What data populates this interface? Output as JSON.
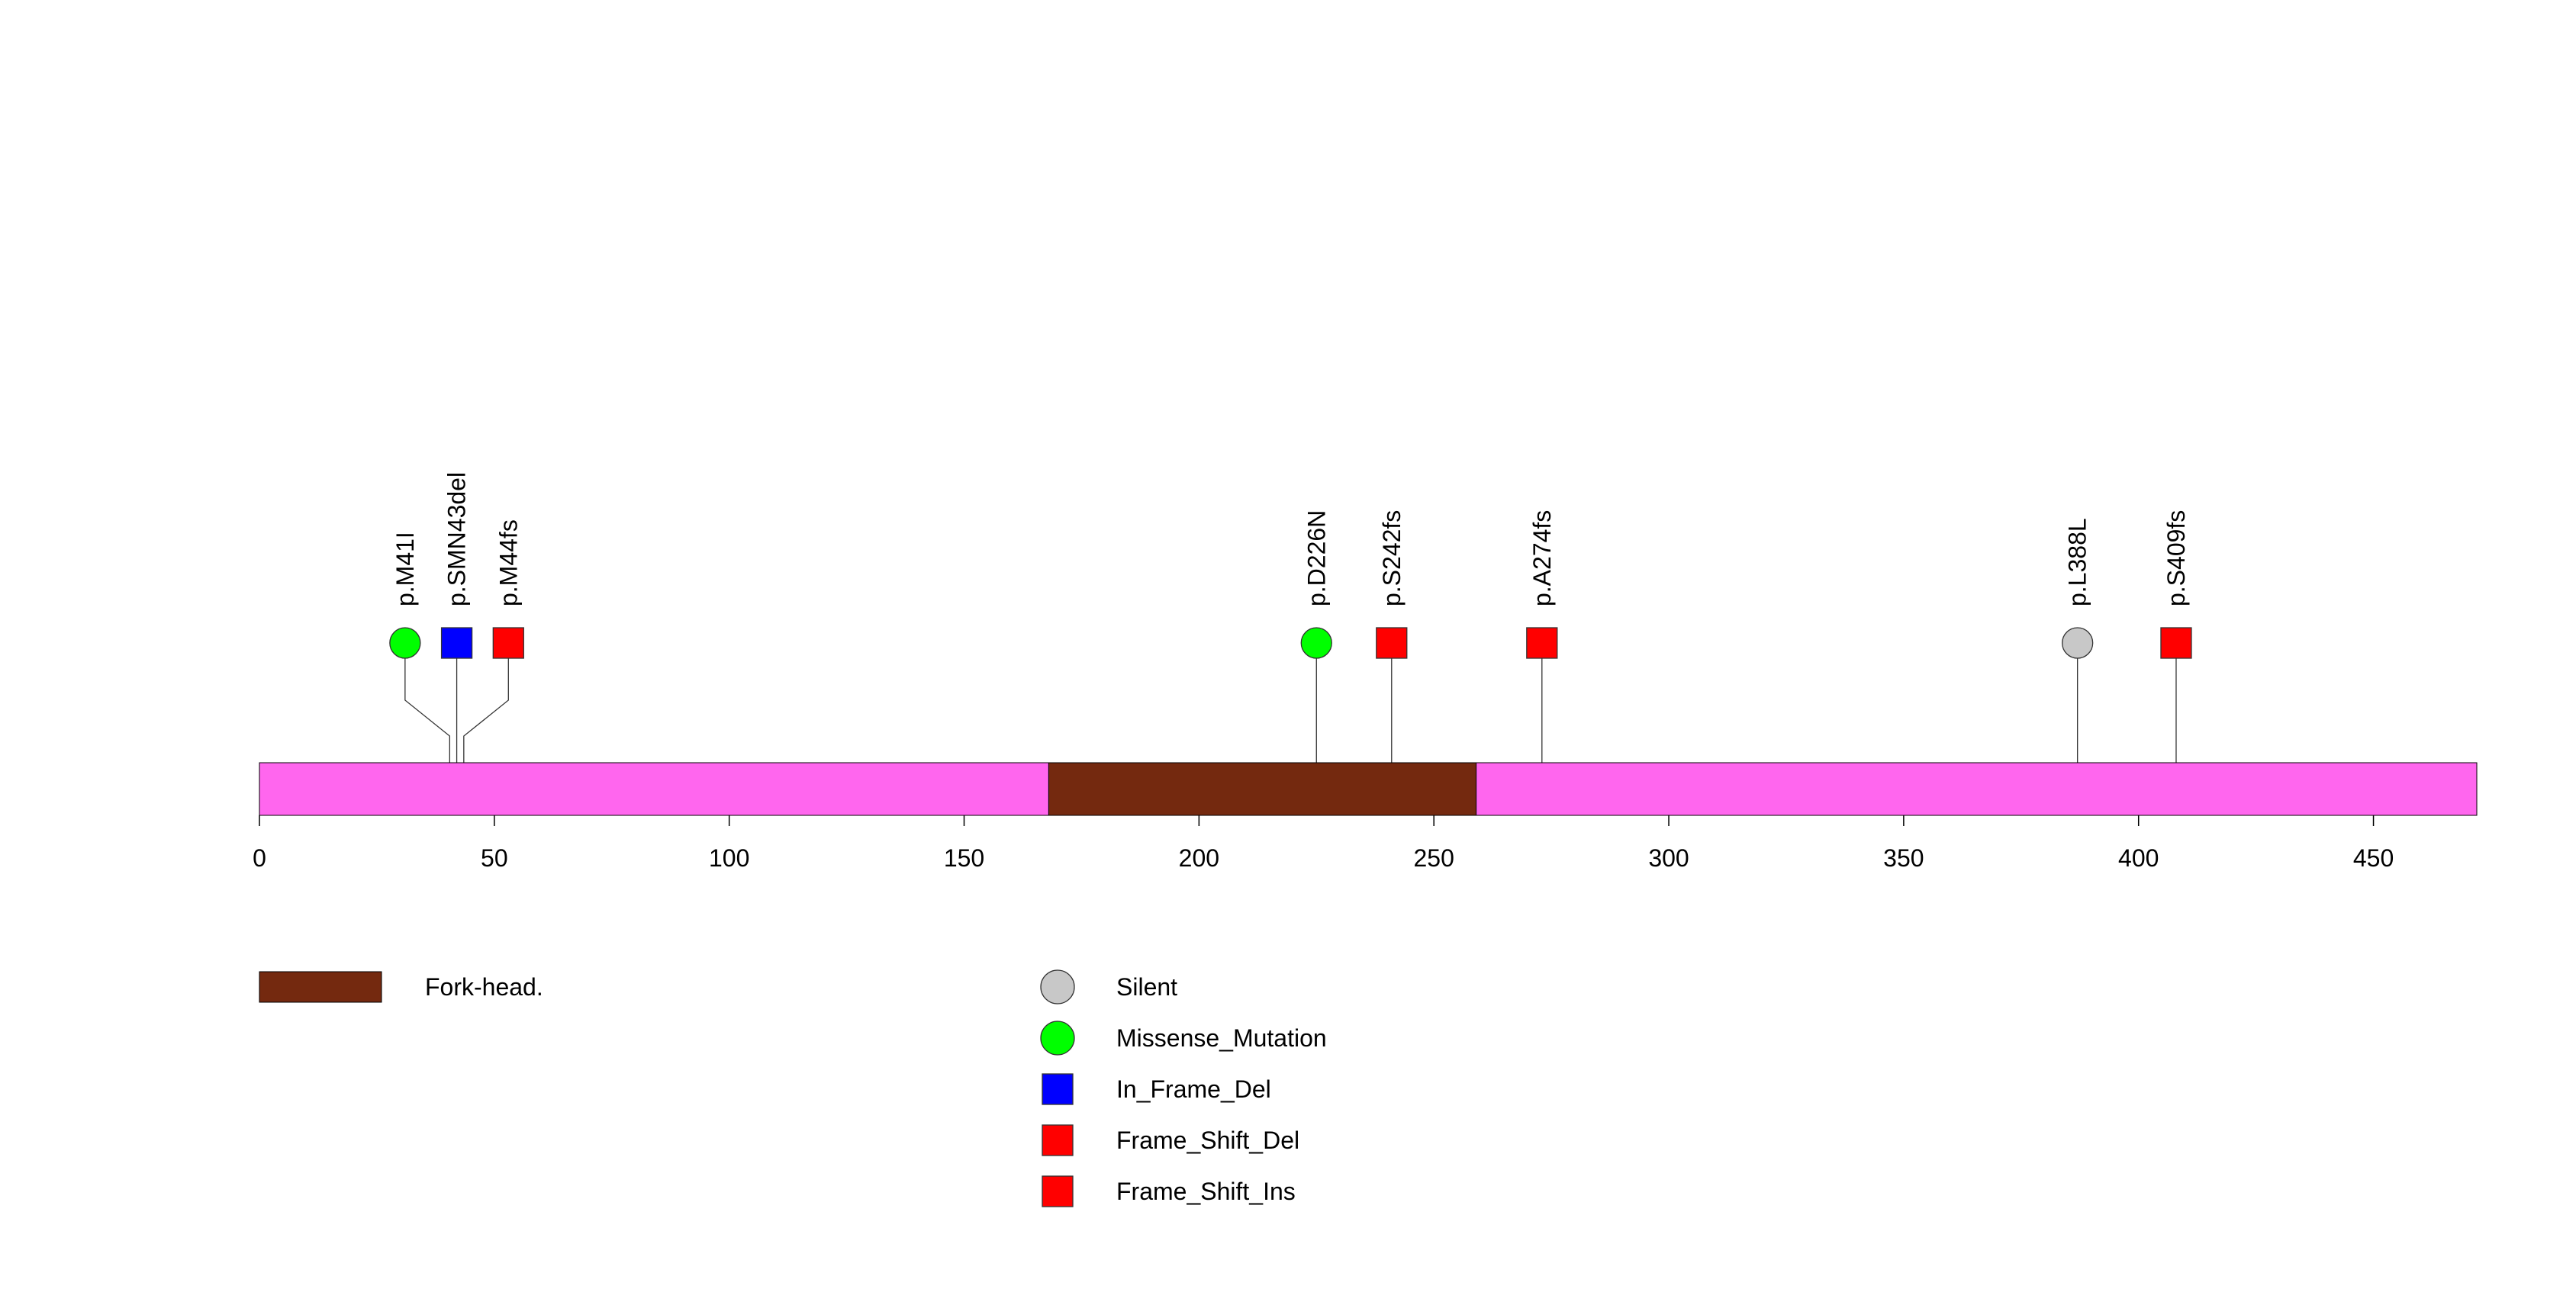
{
  "chart_data": {
    "type": "lollipop",
    "protein_length": 472,
    "axis": {
      "xlim": [
        0,
        472
      ],
      "ticks": [
        0,
        50,
        100,
        150,
        200,
        250,
        300,
        350,
        400,
        450
      ],
      "tick_labels": [
        "0",
        "50",
        "100",
        "150",
        "200",
        "250",
        "300",
        "350",
        "400",
        "450"
      ]
    },
    "protein_color": "#FF66EE",
    "domains": [
      {
        "name": "Fork-head.",
        "start": 168,
        "end": 259,
        "color": "#74290F"
      }
    ],
    "mutations": [
      {
        "label": "p.M41I",
        "position": 40.5,
        "display_position": 31,
        "type": "Missense_Mutation"
      },
      {
        "label": "p.SMN43del",
        "position": 42,
        "display_position": 42,
        "type": "In_Frame_Del"
      },
      {
        "label": "p.M44fs",
        "position": 43.5,
        "display_position": 53,
        "type": "Frame_Shift_Del"
      },
      {
        "label": "p.D226N",
        "position": 225,
        "display_position": 225,
        "type": "Missense_Mutation"
      },
      {
        "label": "p.S242fs",
        "position": 241,
        "display_position": 241,
        "type": "Frame_Shift_Del"
      },
      {
        "label": "p.A274fs",
        "position": 273,
        "display_position": 273,
        "type": "Frame_Shift_Del"
      },
      {
        "label": "p.L388L",
        "position": 387,
        "display_position": 387,
        "type": "Silent"
      },
      {
        "label": "p.S409fs",
        "position": 408,
        "display_position": 408,
        "type": "Frame_Shift_Ins"
      }
    ],
    "legend_domains": [
      {
        "label": "Fork-head.",
        "color": "#74290F"
      }
    ],
    "legend_mutations": [
      {
        "label": "Silent",
        "shape": "circle",
        "color": "#C8C8C8"
      },
      {
        "label": "Missense_Mutation",
        "shape": "circle",
        "color": "#00FF00"
      },
      {
        "label": "In_Frame_Del",
        "shape": "square",
        "color": "#0000FF"
      },
      {
        "label": "Frame_Shift_Del",
        "shape": "square",
        "color": "#FF0000"
      },
      {
        "label": "Frame_Shift_Ins",
        "shape": "square",
        "color": "#FF0000"
      }
    ]
  }
}
